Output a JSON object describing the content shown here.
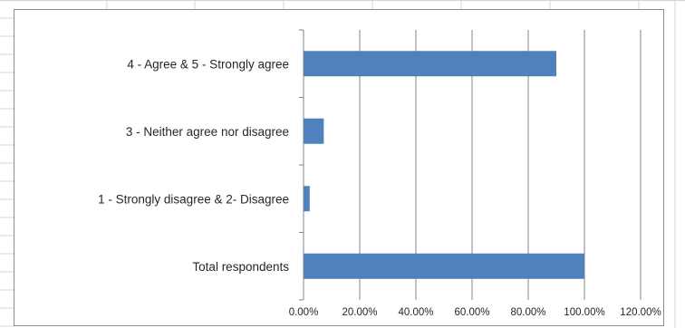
{
  "chart_data": {
    "type": "bar",
    "orientation": "horizontal",
    "categories": [
      "Total respondents",
      "1 - Strongly disagree & 2- Disagree",
      "3 - Neither agree nor disagree",
      "4 - Agree & 5 - Strongly agree"
    ],
    "values": [
      100.0,
      2.2,
      7.2,
      90.0
    ],
    "xlim": [
      0,
      120
    ],
    "x_ticks": [
      "0.00%",
      "20.00%",
      "40.00%",
      "60.00%",
      "80.00%",
      "100.00%",
      "120.00%"
    ],
    "grid": true,
    "legend": "none",
    "bar_color": "#4f81bd"
  }
}
